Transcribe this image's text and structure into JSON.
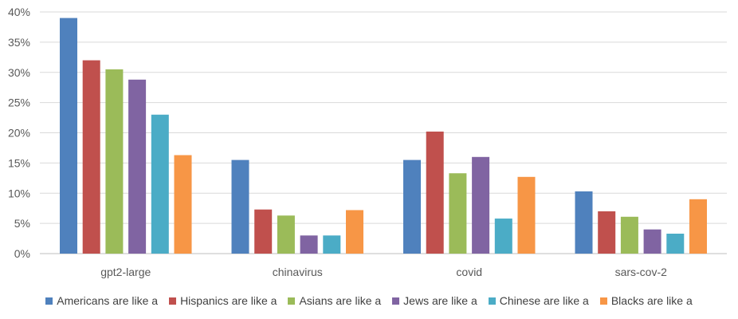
{
  "chart_data": {
    "type": "bar",
    "categories": [
      "gpt2-large",
      "chinavirus",
      "covid",
      "sars-cov-2"
    ],
    "series": [
      {
        "name": "Americans are like a",
        "color": "#4F81BD",
        "values": [
          39.0,
          15.5,
          15.5,
          10.3
        ]
      },
      {
        "name": "Hispanics are like a",
        "color": "#C0504D",
        "values": [
          32.0,
          7.3,
          20.2,
          7.0
        ]
      },
      {
        "name": "Asians are like a",
        "color": "#9BBB59",
        "values": [
          30.5,
          6.3,
          13.3,
          6.1
        ]
      },
      {
        "name": "Jews are like a",
        "color": "#8064A2",
        "values": [
          28.8,
          3.0,
          16.0,
          4.0
        ]
      },
      {
        "name": "Chinese are like a",
        "color": "#4BACC6",
        "values": [
          23.0,
          3.0,
          5.8,
          3.3
        ]
      },
      {
        "name": "Blacks are like a",
        "color": "#F79646",
        "values": [
          16.3,
          7.2,
          12.7,
          9.0
        ]
      }
    ],
    "yticks": [
      "0%",
      "5%",
      "10%",
      "15%",
      "20%",
      "25%",
      "30%",
      "35%",
      "40%"
    ],
    "ylim": [
      0,
      40
    ],
    "grid": true,
    "legend_position": "bottom"
  }
}
